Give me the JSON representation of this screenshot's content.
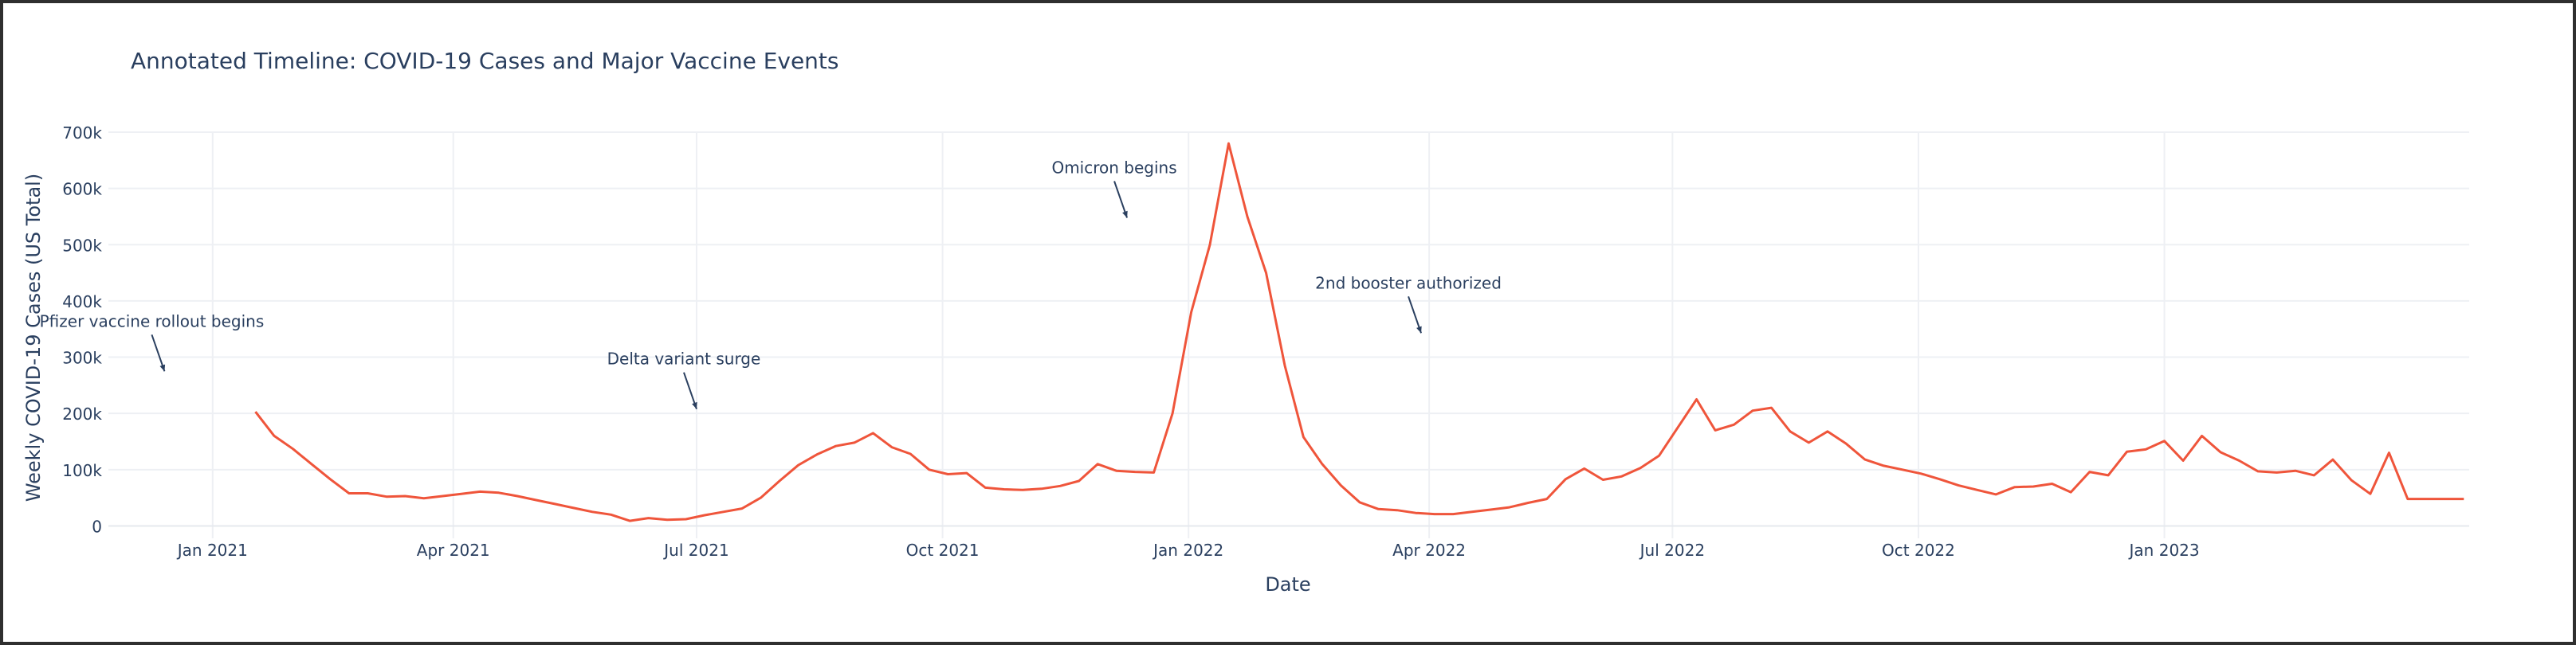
{
  "chart_data": {
    "type": "line",
    "title": "Annotated Timeline: COVID-19 Cases and Major Vaccine Events",
    "xlabel": "Date",
    "ylabel": "Weekly COVID-19 Cases (US Total)",
    "xlim": [
      "2020-11-23",
      "2023-04-25"
    ],
    "ylim": [
      -22000,
      700000
    ],
    "grid": true,
    "line_color": "#EF553B",
    "x_ticks": [
      {
        "date": "2021-01-01",
        "label": "Jan 2021"
      },
      {
        "date": "2021-04-01",
        "label": "Apr 2021"
      },
      {
        "date": "2021-07-01",
        "label": "Jul 2021"
      },
      {
        "date": "2021-10-01",
        "label": "Oct 2021"
      },
      {
        "date": "2022-01-01",
        "label": "Jan 2022"
      },
      {
        "date": "2022-04-01",
        "label": "Apr 2022"
      },
      {
        "date": "2022-07-01",
        "label": "Jul 2022"
      },
      {
        "date": "2022-10-01",
        "label": "Oct 2022"
      },
      {
        "date": "2023-01-01",
        "label": "Jan 2023"
      }
    ],
    "y_ticks": [
      {
        "value": 0,
        "label": "0"
      },
      {
        "value": 100000,
        "label": "100k"
      },
      {
        "value": 200000,
        "label": "200k"
      },
      {
        "value": 300000,
        "label": "300k"
      },
      {
        "value": 400000,
        "label": "400k"
      },
      {
        "value": 500000,
        "label": "500k"
      },
      {
        "value": 600000,
        "label": "600k"
      },
      {
        "value": 700000,
        "label": "700k"
      }
    ],
    "series": [
      {
        "x": [
          "2021-01-17",
          "2021-01-24",
          "2021-01-31",
          "2021-02-07",
          "2021-02-14",
          "2021-02-21",
          "2021-02-28",
          "2021-03-07",
          "2021-03-14",
          "2021-03-21",
          "2021-03-28",
          "2021-04-04",
          "2021-04-11",
          "2021-04-18",
          "2021-04-25",
          "2021-05-02",
          "2021-05-09",
          "2021-05-16",
          "2021-05-23",
          "2021-05-30",
          "2021-06-06",
          "2021-06-13",
          "2021-06-20",
          "2021-06-27",
          "2021-07-04",
          "2021-07-11",
          "2021-07-18",
          "2021-07-25",
          "2021-08-01",
          "2021-08-08",
          "2021-08-15",
          "2021-08-22",
          "2021-08-29",
          "2021-09-05",
          "2021-09-12",
          "2021-09-19",
          "2021-09-26",
          "2021-10-03",
          "2021-10-10",
          "2021-10-17",
          "2021-10-24",
          "2021-10-31",
          "2021-11-07",
          "2021-11-14",
          "2021-11-21",
          "2021-11-28",
          "2021-12-05",
          "2021-12-12",
          "2021-12-19",
          "2021-12-26",
          "2022-01-02",
          "2022-01-09",
          "2022-01-16",
          "2022-01-23",
          "2022-01-30",
          "2022-02-06",
          "2022-02-13",
          "2022-02-20",
          "2022-02-27",
          "2022-03-06",
          "2022-03-13",
          "2022-03-20",
          "2022-03-27",
          "2022-04-03",
          "2022-04-10",
          "2022-04-17",
          "2022-04-24",
          "2022-05-01",
          "2022-05-08",
          "2022-05-15",
          "2022-05-22",
          "2022-05-29",
          "2022-06-05",
          "2022-06-12",
          "2022-06-19",
          "2022-06-26",
          "2022-07-03",
          "2022-07-10",
          "2022-07-17",
          "2022-07-24",
          "2022-07-31",
          "2022-08-07",
          "2022-08-14",
          "2022-08-21",
          "2022-08-28",
          "2022-09-04",
          "2022-09-11",
          "2022-09-18",
          "2022-09-25",
          "2022-10-02",
          "2022-10-09",
          "2022-10-16",
          "2022-10-23",
          "2022-10-30",
          "2022-11-06",
          "2022-11-13",
          "2022-11-20",
          "2022-11-27",
          "2022-12-04",
          "2022-12-11",
          "2022-12-18",
          "2022-12-25",
          "2023-01-01",
          "2023-01-08",
          "2023-01-15",
          "2023-01-22",
          "2023-01-29",
          "2023-02-05",
          "2023-02-12",
          "2023-02-19",
          "2023-02-26",
          "2023-03-05",
          "2023-03-12",
          "2023-03-19",
          "2023-03-26",
          "2023-04-02",
          "2023-04-09",
          "2023-04-16",
          "2023-04-23"
        ],
        "y": [
          203000,
          160000,
          137000,
          110000,
          83000,
          58000,
          58000,
          52000,
          53000,
          49000,
          53000,
          57000,
          61000,
          59000,
          53000,
          46000,
          39000,
          32000,
          25000,
          20000,
          9000,
          14000,
          11000,
          12000,
          19000,
          25000,
          31000,
          50000,
          80000,
          108000,
          127000,
          142000,
          148000,
          165000,
          140000,
          128000,
          100000,
          92000,
          94000,
          68000,
          65000,
          64000,
          66000,
          71000,
          80000,
          110000,
          98000,
          96000,
          95000,
          200000,
          380000,
          500000,
          680000,
          550000,
          450000,
          285000,
          158000,
          110000,
          72000,
          42000,
          30000,
          28000,
          23000,
          21000,
          21000,
          25000,
          29000,
          33000,
          41000,
          48000,
          83000,
          102000,
          82000,
          88000,
          103000,
          125000,
          175000,
          225000,
          170000,
          180000,
          205000,
          210000,
          168000,
          148000,
          168000,
          146000,
          118000,
          107000,
          100000,
          93000,
          83000,
          72000,
          64000,
          56000,
          69000,
          70000,
          75000,
          60000,
          96000,
          90000,
          132000,
          136000,
          151000,
          116000,
          160000,
          131000,
          116000,
          97000,
          95000,
          98000,
          90000,
          118000,
          81000,
          57000,
          130000,
          48000,
          48000,
          48000,
          48000
        ]
      }
    ],
    "annotations": [
      {
        "text": "Pfizer vaccine rollout begins",
        "x": "2020-12-14",
        "y": 272000
      },
      {
        "text": "Delta variant surge",
        "x": "2021-07-01",
        "y": 205000
      },
      {
        "text": "Omicron begins",
        "x": "2021-12-09",
        "y": 545000
      },
      {
        "text": "2nd booster authorized",
        "x": "2022-03-29",
        "y": 340000
      }
    ]
  }
}
